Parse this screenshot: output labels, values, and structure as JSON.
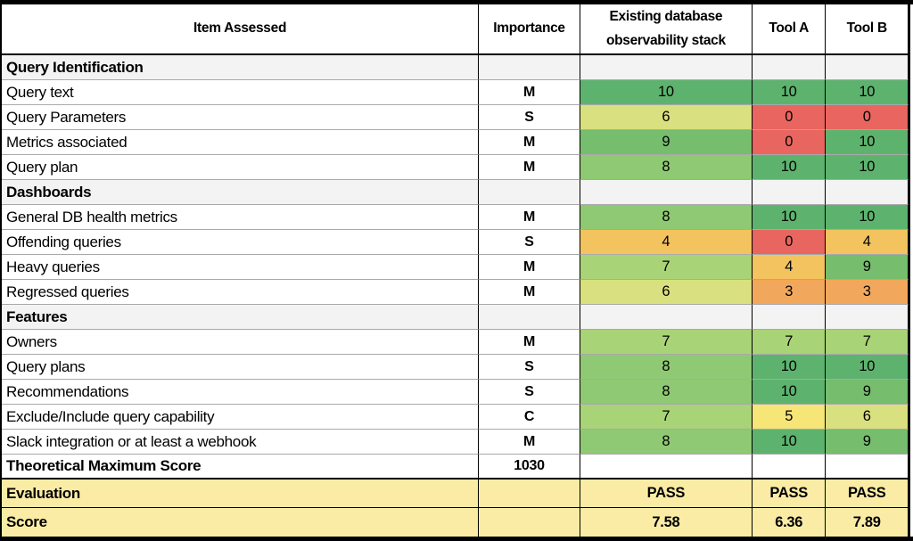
{
  "table": {
    "columns": {
      "item": "Item Assessed",
      "importance": "Importance",
      "existing": "Existing database observability stack",
      "tool_a": "Tool A",
      "tool_b": "Tool B"
    },
    "sections": [
      {
        "title": "Query Identification",
        "rows": [
          {
            "item": "Query text",
            "importance": "M",
            "scores": [
              10,
              10,
              10
            ]
          },
          {
            "item": "Query Parameters",
            "importance": "S",
            "scores": [
              6,
              0,
              0
            ]
          },
          {
            "item": "Metrics associated",
            "importance": "M",
            "scores": [
              9,
              0,
              10
            ]
          },
          {
            "item": "Query plan",
            "importance": "M",
            "scores": [
              8,
              10,
              10
            ]
          }
        ]
      },
      {
        "title": "Dashboards",
        "rows": [
          {
            "item": "General DB health metrics",
            "importance": "M",
            "scores": [
              8,
              10,
              10
            ]
          },
          {
            "item": "Offending queries",
            "importance": "S",
            "scores": [
              4,
              0,
              4
            ]
          },
          {
            "item": "Heavy queries",
            "importance": "M",
            "scores": [
              7,
              4,
              9
            ]
          },
          {
            "item": "Regressed queries",
            "importance": "M",
            "scores": [
              6,
              3,
              3
            ]
          }
        ]
      },
      {
        "title": "Features",
        "rows": [
          {
            "item": "Owners",
            "importance": "M",
            "scores": [
              7,
              7,
              7
            ]
          },
          {
            "item": "Query plans",
            "importance": "S",
            "scores": [
              8,
              10,
              10
            ]
          },
          {
            "item": "Recommendations",
            "importance": "S",
            "scores": [
              8,
              10,
              9
            ]
          },
          {
            "item": "Exclude/Include query capability",
            "importance": "C",
            "scores": [
              7,
              5,
              6
            ]
          },
          {
            "item": "Slack integration or at least a webhook",
            "importance": "M",
            "scores": [
              8,
              10,
              9
            ]
          }
        ]
      }
    ],
    "summary": {
      "theoretical": {
        "label": "Theoretical Maximum Score",
        "value": "1030"
      },
      "evaluation": {
        "label": "Evaluation",
        "values": [
          "PASS",
          "PASS",
          "PASS"
        ]
      },
      "score": {
        "label": "Score",
        "values": [
          "7.58",
          "6.36",
          "7.89"
        ]
      }
    },
    "score_colors": {
      "0": "#E9655F",
      "3": "#F2A85C",
      "4": "#F3C35F",
      "5": "#F6E577",
      "6": "#D9E07F",
      "7": "#A9D377",
      "8": "#8FC973",
      "9": "#76BD6E",
      "10": "#5DB36E"
    },
    "section_bg": "#F3F3F3",
    "summary_bg": "#FBECA5"
  },
  "chart_data": {
    "type": "heatmap",
    "columns": [
      "Existing database observability stack",
      "Tool A",
      "Tool B"
    ],
    "rows": [
      {
        "section": "Query Identification",
        "item": "Query text",
        "importance": "M",
        "values": [
          10,
          10,
          10
        ]
      },
      {
        "section": "Query Identification",
        "item": "Query Parameters",
        "importance": "S",
        "values": [
          6,
          0,
          0
        ]
      },
      {
        "section": "Query Identification",
        "item": "Metrics associated",
        "importance": "M",
        "values": [
          9,
          0,
          10
        ]
      },
      {
        "section": "Query Identification",
        "item": "Query plan",
        "importance": "M",
        "values": [
          8,
          10,
          10
        ]
      },
      {
        "section": "Dashboards",
        "item": "General DB health metrics",
        "importance": "M",
        "values": [
          8,
          10,
          10
        ]
      },
      {
        "section": "Dashboards",
        "item": "Offending queries",
        "importance": "S",
        "values": [
          4,
          0,
          4
        ]
      },
      {
        "section": "Dashboards",
        "item": "Heavy queries",
        "importance": "M",
        "values": [
          7,
          4,
          9
        ]
      },
      {
        "section": "Dashboards",
        "item": "Regressed queries",
        "importance": "M",
        "values": [
          6,
          3,
          3
        ]
      },
      {
        "section": "Features",
        "item": "Owners",
        "importance": "M",
        "values": [
          7,
          7,
          7
        ]
      },
      {
        "section": "Features",
        "item": "Query plans",
        "importance": "S",
        "values": [
          8,
          10,
          10
        ]
      },
      {
        "section": "Features",
        "item": "Recommendations",
        "importance": "S",
        "values": [
          8,
          10,
          9
        ]
      },
      {
        "section": "Features",
        "item": "Exclude/Include query capability",
        "importance": "C",
        "values": [
          7,
          5,
          6
        ]
      },
      {
        "section": "Features",
        "item": "Slack integration or at least a webhook",
        "importance": "M",
        "values": [
          8,
          10,
          9
        ]
      }
    ],
    "theoretical_maximum_score": 1030,
    "evaluation": [
      "PASS",
      "PASS",
      "PASS"
    ],
    "score": [
      7.58,
      6.36,
      7.89
    ],
    "color_scale": {
      "domain": [
        0,
        5,
        10
      ],
      "low": "#E9655F",
      "mid": "#F6E577",
      "high": "#5DB36E"
    }
  }
}
